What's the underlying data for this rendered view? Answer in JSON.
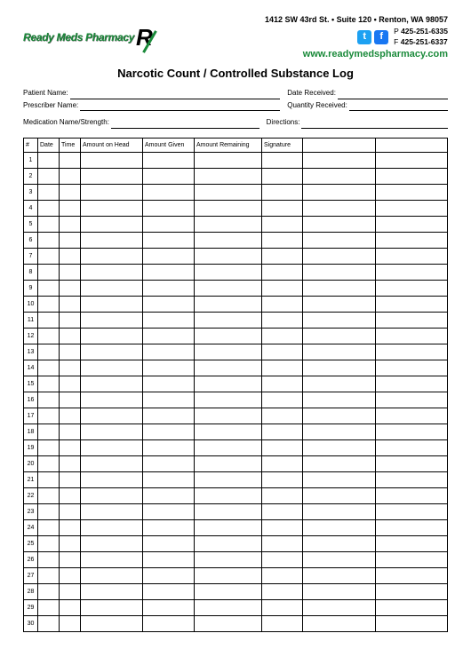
{
  "brand": {
    "name": "Ready Meds Pharmacy",
    "rx": "R"
  },
  "contact": {
    "address": "1412 SW 43rd St.  •  Suite 120  •  Renton, WA 98057",
    "phone": "425-251-6335",
    "fax": "425-251-6337",
    "website": "www.readymedspharmacy.com"
  },
  "title": "Narcotic Count / Controlled Substance Log",
  "fields": {
    "patient": "Patient Name:",
    "date_received": "Date Received:",
    "prescriber": "Prescriber Name:",
    "qty_received": "Quantity Received:",
    "medication": "Medication Name/Strength:",
    "directions": "Directions:"
  },
  "table": {
    "columns": [
      "#",
      "Date",
      "Time",
      "Amount on Head",
      "Amount Given",
      "Amount Remaining",
      "Signature"
    ],
    "row_count": 30
  },
  "colors": {
    "brand_green": "#1a8a3a",
    "twitter": "#1da1f2",
    "facebook": "#1877f2"
  }
}
